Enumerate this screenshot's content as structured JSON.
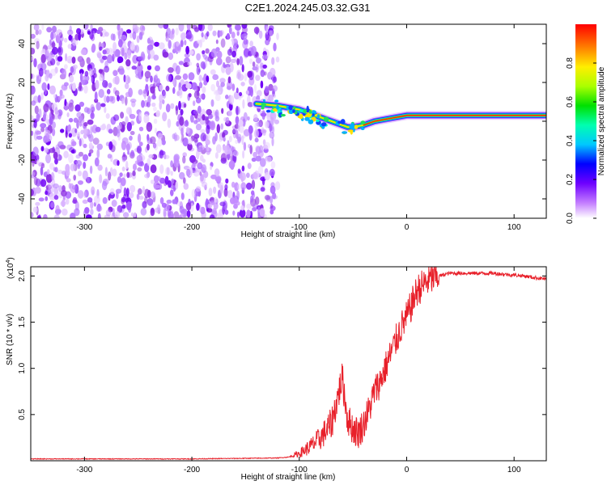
{
  "title": "C2E1.2024.245.03.32.G31",
  "chart_data": [
    {
      "type": "heatmap",
      "xlabel": "Height of straight line (km)",
      "ylabel": "Frequency (Hz)",
      "xlim": [
        -350,
        130
      ],
      "ylim": [
        -50,
        50
      ],
      "xticks": [
        -300,
        -200,
        -100,
        0,
        100
      ],
      "yticks": [
        -40,
        -20,
        0,
        20,
        40
      ],
      "noise_region_x": [
        -350,
        -120
      ],
      "signal_track": {
        "x": [
          -140,
          -120,
          -100,
          -90,
          -80,
          -70,
          -60,
          -55,
          -50,
          -40,
          -30,
          -20,
          -10,
          0,
          20,
          40,
          60,
          80,
          100,
          120,
          130
        ],
        "y": [
          9,
          8,
          6,
          4,
          2,
          0,
          -2,
          -3,
          -3,
          -2,
          0,
          1,
          2,
          3,
          3,
          3,
          3,
          3,
          3,
          3,
          3
        ]
      },
      "colorbar": {
        "label": "Normalized spectral amplitude",
        "range": [
          0.0,
          1.0
        ],
        "ticks": [
          0.0,
          0.2,
          0.4,
          0.6,
          0.8
        ]
      }
    },
    {
      "type": "line",
      "xlabel": "Height of straight line (km)",
      "ylabel": "SNR (10 * v/v)",
      "multiplier": "(x10",
      "multiplier_exp": "4",
      "multiplier_close": ")",
      "xlim": [
        -350,
        130
      ],
      "ylim": [
        0,
        2.1
      ],
      "xticks": [
        -300,
        -200,
        -100,
        0,
        100
      ],
      "yticks": [
        0.5,
        1.0,
        1.5,
        2.0
      ],
      "ytick_labels": [
        "0.5",
        "1.0",
        "1.5",
        "2.0"
      ],
      "color": "#e8202a",
      "series": [
        {
          "x": [
            -350,
            -300,
            -200,
            -120,
            -110,
            -100,
            -90,
            -80,
            -70,
            -65,
            -60,
            -55,
            -50,
            -45,
            -40,
            -35,
            -30,
            -25,
            -20,
            -15,
            -10,
            -5,
            0,
            5,
            10,
            20,
            30,
            40,
            60,
            80,
            100,
            110,
            120,
            130
          ],
          "values": [
            0.02,
            0.02,
            0.02,
            0.03,
            0.04,
            0.08,
            0.15,
            0.25,
            0.4,
            0.65,
            0.9,
            0.45,
            0.35,
            0.3,
            0.4,
            0.55,
            0.75,
            0.85,
            1.0,
            1.15,
            1.3,
            1.45,
            1.55,
            1.7,
            1.85,
            1.95,
            2.0,
            2.03,
            2.03,
            2.03,
            2.01,
            2.0,
            1.98,
            1.97
          ]
        }
      ]
    }
  ]
}
